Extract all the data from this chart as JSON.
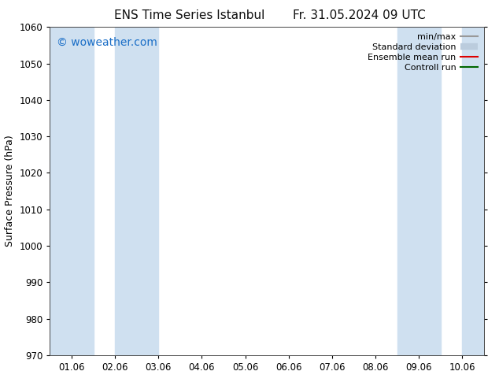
{
  "title_left": "ENS Time Series Istanbul",
  "title_right": "Fr. 31.05.2024 09 UTC",
  "ylabel": "Surface Pressure (hPa)",
  "ylim": [
    970,
    1060
  ],
  "yticks": [
    970,
    980,
    990,
    1000,
    1010,
    1020,
    1030,
    1040,
    1050,
    1060
  ],
  "xtick_labels": [
    "01.06",
    "02.06",
    "03.06",
    "04.06",
    "05.06",
    "06.06",
    "07.06",
    "08.06",
    "09.06",
    "10.06"
  ],
  "n_xticks": 10,
  "xlim": [
    0,
    9
  ],
  "watermark": "© woweather.com",
  "watermark_color": "#1a6ec7",
  "background_color": "#ffffff",
  "plot_background": "#ffffff",
  "band_color": "#cfe0f0",
  "shaded_bands": [
    {
      "x_start": 0.0,
      "x_end": 0.5
    },
    {
      "x_start": 1.0,
      "x_end": 2.5
    },
    {
      "x_start": 7.0,
      "x_end": 8.5
    },
    {
      "x_start": 9.0,
      "x_end": 9.0
    }
  ],
  "legend_entries": [
    {
      "label": "min/max",
      "color": "#999999",
      "linewidth": 1.5,
      "linestyle": "-"
    },
    {
      "label": "Standard deviation",
      "color": "#bbccdd",
      "linewidth": 6,
      "linestyle": "-"
    },
    {
      "label": "Ensemble mean run",
      "color": "#dd0000",
      "linewidth": 1.5,
      "linestyle": "-"
    },
    {
      "label": "Controll run",
      "color": "#006600",
      "linewidth": 1.5,
      "linestyle": "-"
    }
  ],
  "title_fontsize": 11,
  "axis_label_fontsize": 9,
  "tick_fontsize": 8.5,
  "legend_fontsize": 8,
  "watermark_fontsize": 10
}
